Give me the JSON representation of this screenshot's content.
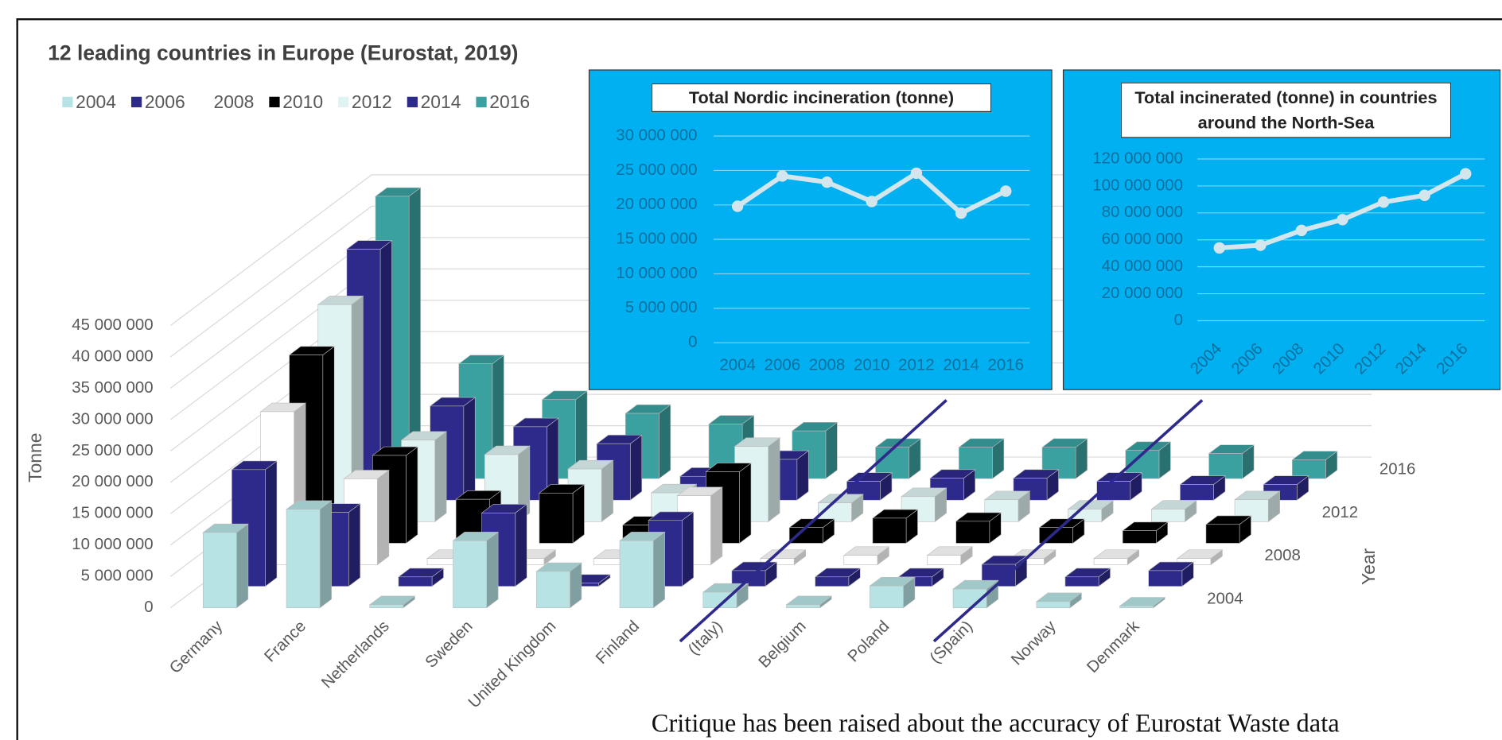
{
  "chart_data": [
    {
      "type": "bar3d",
      "title": "12 leading countries in Europe (Eurostat, 2019)",
      "categories": [
        "Germany",
        "France",
        "Netherlands",
        "Sweden",
        "United Kingdom",
        "Finland",
        "(Italy)",
        "Belgium",
        "Poland",
        "(Spain)",
        "Norway",
        "Denmark"
      ],
      "series": [
        {
          "name": "2004",
          "color": "#b7e3e4",
          "values": [
            12000000,
            15700000,
            500000,
            10700000,
            5800000,
            10700000,
            2500000,
            500000,
            3500000,
            3000000,
            1000000,
            300000
          ]
        },
        {
          "name": "2006",
          "color": "#2e2a8c",
          "values": [
            18600000,
            11800000,
            1500000,
            11700000,
            500000,
            10500000,
            2500000,
            1500000,
            1500000,
            3500000,
            1500000,
            2500000
          ]
        },
        {
          "name": "2008",
          "color": "#ffffff",
          "values": [
            24400000,
            13700000,
            1000000,
            1000000,
            1000000,
            11000000,
            1000000,
            1500000,
            1500000,
            1000000,
            1000000,
            1000000
          ]
        },
        {
          "name": "2010",
          "color": "#000000",
          "values": [
            30000000,
            14000000,
            7000000,
            8000000,
            2900000,
            11400000,
            2500000,
            4000000,
            3500000,
            2500000,
            2000000,
            3000000
          ]
        },
        {
          "name": "2012",
          "color": "#dff3f3",
          "values": [
            34600000,
            13000000,
            10700000,
            8400000,
            4600000,
            12000000,
            3000000,
            4000000,
            3500000,
            2000000,
            2000000,
            3500000
          ]
        },
        {
          "name": "2014",
          "color": "#2e2a8c",
          "values": [
            40000000,
            15000000,
            11700000,
            9000000,
            3800000,
            6500000,
            3000000,
            3500000,
            3500000,
            3000000,
            2500000,
            2500000
          ]
        },
        {
          "name": "2016",
          "color": "#3aa0a0",
          "values": [
            45000000,
            18300000,
            12600000,
            10400000,
            8700000,
            7600000,
            5000000,
            5000000,
            5000000,
            4500000,
            4000000,
            3000000
          ]
        }
      ],
      "ylabel": "Tonne",
      "zlabel": "Year",
      "ylim": [
        0,
        45000000
      ],
      "yticks": [
        0,
        {
          "value": 5000000,
          "label": "5 000 000"
        },
        {
          "value": 10000000,
          "label": "10 000 000"
        },
        {
          "value": 15000000,
          "label": "15 000 000"
        },
        {
          "value": 20000000,
          "label": "20 000 000"
        },
        {
          "value": 25000000,
          "label": "25 000 000"
        },
        {
          "value": 30000000,
          "label": "30 000 000"
        },
        {
          "value": 35000000,
          "label": "35 000 000"
        },
        {
          "value": 40000000,
          "label": "40 000 000"
        },
        {
          "value": 45000000,
          "label": "45 000 000"
        }
      ],
      "grid": true
    },
    {
      "type": "line",
      "title": "Total Nordic incineration (tonne)",
      "categories": [
        "2004",
        "2006",
        "2008",
        "2010",
        "2012",
        "2014",
        "2016"
      ],
      "series": [
        {
          "color": "#d3e6ee",
          "values": [
            19800000,
            24200000,
            23300000,
            20500000,
            24600000,
            18800000,
            22000000
          ]
        }
      ],
      "ylim": [
        0,
        30000000
      ],
      "yticks": [
        0,
        {
          "value": 5000000,
          "label": "5 000 000"
        },
        {
          "value": 10000000,
          "label": "10 000 000"
        },
        {
          "value": 15000000,
          "label": "15 000 000"
        },
        {
          "value": 20000000,
          "label": "20 000 000"
        },
        {
          "value": 25000000,
          "label": "25 000 000"
        },
        {
          "value": 30000000,
          "label": "30 000 000"
        }
      ],
      "grid": true
    },
    {
      "type": "line",
      "title": "Total incinerated (tonne) in countries around the North-Sea",
      "categories": [
        "2004",
        "2006",
        "2008",
        "2010",
        "2012",
        "2014",
        "2016"
      ],
      "series": [
        {
          "color": "#d3e6ee",
          "values": [
            54000000,
            56000000,
            67000000,
            75000000,
            88000000,
            93000000,
            109000000
          ]
        }
      ],
      "ylim": [
        0,
        120000000
      ],
      "yticks": [
        0,
        {
          "value": 20000000,
          "label": "20 000 000"
        },
        {
          "value": 40000000,
          "label": "40 000 000"
        },
        {
          "value": 60000000,
          "label": "60 000 000"
        },
        {
          "value": 80000000,
          "label": "80 000 000"
        },
        {
          "value": 100000000,
          "label": "100 000 000"
        },
        {
          "value": 120000000,
          "label": "120 000 000"
        }
      ],
      "grid": true
    }
  ],
  "caption": "Critique has been raised about the accuracy of Eurostat Waste data"
}
